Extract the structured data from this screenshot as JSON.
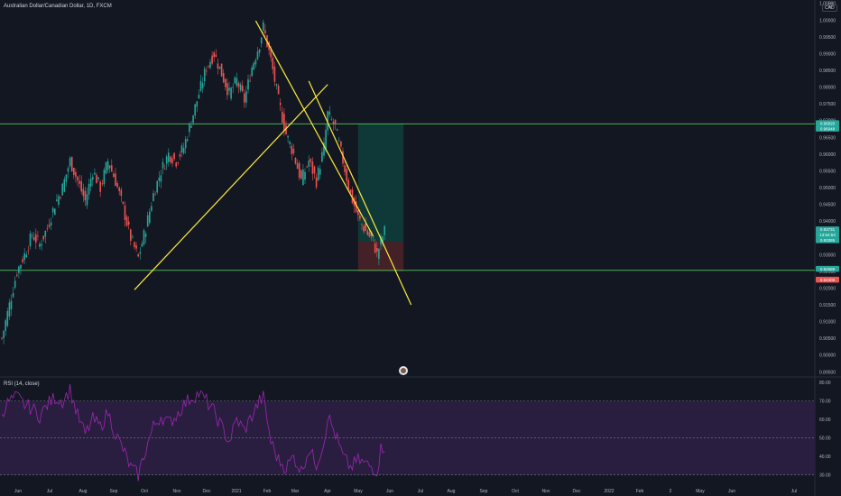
{
  "title": "Australian Dollar/Canadian Dollar, 1D, FXCM",
  "currency_badge": "CAD",
  "settings_icon": "gear-icon",
  "rsi_label": "RSI (14, close)",
  "price_tags": [
    {
      "text": "0.96820",
      "bg": "#26a69a"
    },
    {
      "text": "0.96948",
      "bg": "#26a69a"
    },
    {
      "text": "0.93731",
      "bg": "#26a69a"
    },
    {
      "text": "13:54:53",
      "bg": "#26a69a"
    },
    {
      "text": "0.93385",
      "bg": "#26a69a"
    },
    {
      "text": "0.92589",
      "bg": "#26a69a"
    },
    {
      "text": "0.92409",
      "bg": "#ef5350"
    }
  ],
  "chart_data": [
    {
      "type": "candlestick",
      "symbol": "AUD/CAD",
      "timeframe": "1D",
      "x_ticks": [
        "Jun",
        "Jul",
        "Aug",
        "Sep",
        "Oct",
        "Nov",
        "Dec",
        "2021",
        "Feb",
        "Mar",
        "Apr",
        "May",
        "Jun",
        "Jul",
        "Aug",
        "Sep",
        "Oct",
        "Nov",
        "Dec",
        "2022",
        "Feb",
        "2",
        "May",
        "Jun",
        "Jul"
      ],
      "y_ticks": [
        "1.00500",
        "1.00000",
        "0.99500",
        "0.99000",
        "0.98500",
        "0.98000",
        "0.97500",
        "0.97000",
        "0.96500",
        "0.96000",
        "0.95500",
        "0.95000",
        "0.94500",
        "0.94000",
        "0.93500",
        "0.93000",
        "0.92500",
        "0.92000",
        "0.91500",
        "0.91000",
        "0.90500",
        "0.90000",
        "0.89500"
      ],
      "ylim": [
        0.894,
        1.006
      ],
      "close_path": [
        [
          0,
          0.905
        ],
        [
          4,
          0.915
        ],
        [
          8,
          0.925
        ],
        [
          12,
          0.93
        ],
        [
          16,
          0.936
        ],
        [
          20,
          0.933
        ],
        [
          24,
          0.938
        ],
        [
          28,
          0.945
        ],
        [
          32,
          0.95
        ],
        [
          36,
          0.958
        ],
        [
          40,
          0.952
        ],
        [
          44,
          0.946
        ],
        [
          48,
          0.955
        ],
        [
          52,
          0.95
        ],
        [
          56,
          0.958
        ],
        [
          60,
          0.952
        ],
        [
          64,
          0.944
        ],
        [
          68,
          0.935
        ],
        [
          72,
          0.929
        ],
        [
          76,
          0.938
        ],
        [
          80,
          0.948
        ],
        [
          84,
          0.955
        ],
        [
          88,
          0.96
        ],
        [
          92,
          0.958
        ],
        [
          96,
          0.962
        ],
        [
          100,
          0.97
        ],
        [
          104,
          0.978
        ],
        [
          108,
          0.986
        ],
        [
          112,
          0.99
        ],
        [
          116,
          0.984
        ],
        [
          120,
          0.978
        ],
        [
          124,
          0.982
        ],
        [
          128,
          0.976
        ],
        [
          132,
          0.986
        ],
        [
          136,
          0.993
        ],
        [
          138,
          0.998
        ],
        [
          142,
          0.988
        ],
        [
          146,
          0.976
        ],
        [
          150,
          0.966
        ],
        [
          154,
          0.96
        ],
        [
          158,
          0.952
        ],
        [
          162,
          0.958
        ],
        [
          166,
          0.952
        ],
        [
          170,
          0.962
        ],
        [
          172,
          0.972
        ],
        [
          176,
          0.968
        ],
        [
          180,
          0.958
        ],
        [
          184,
          0.948
        ],
        [
          188,
          0.941
        ],
        [
          192,
          0.937
        ],
        [
          196,
          0.934
        ],
        [
          198,
          0.93
        ],
        [
          200,
          0.934
        ],
        [
          202,
          0.937
        ]
      ],
      "resistance_level": 0.969,
      "support_level": 0.9253,
      "trendlines": [
        {
          "from": [
            70,
            0.9195
          ],
          "to": [
            172,
            0.9808
          ]
        },
        {
          "from": [
            134,
            0.9998
          ],
          "to": [
            196,
            0.9355
          ]
        },
        {
          "from": [
            162,
            0.9818
          ],
          "to": [
            216,
            0.915
          ]
        }
      ],
      "position": {
        "type": "long",
        "entry": 0.9338,
        "take_profit": 0.969,
        "stop_loss": 0.925,
        "x_start": 188,
        "x_end": 212
      }
    },
    {
      "type": "line",
      "name": "RSI (14, close)",
      "y_ticks": [
        "80.00",
        "70.00",
        "60.00",
        "50.00",
        "40.00",
        "30.00"
      ],
      "ylim": [
        25,
        82
      ],
      "bands": [
        30,
        50,
        70
      ],
      "values_path": [
        [
          0,
          64
        ],
        [
          4,
          70
        ],
        [
          8,
          72
        ],
        [
          12,
          68
        ],
        [
          16,
          66
        ],
        [
          20,
          62
        ],
        [
          24,
          68
        ],
        [
          28,
          72
        ],
        [
          32,
          70
        ],
        [
          36,
          76
        ],
        [
          40,
          62
        ],
        [
          44,
          52
        ],
        [
          48,
          60
        ],
        [
          52,
          56
        ],
        [
          56,
          64
        ],
        [
          60,
          52
        ],
        [
          64,
          44
        ],
        [
          68,
          34
        ],
        [
          72,
          30
        ],
        [
          76,
          44
        ],
        [
          80,
          56
        ],
        [
          84,
          62
        ],
        [
          88,
          58
        ],
        [
          92,
          62
        ],
        [
          96,
          68
        ],
        [
          100,
          72
        ],
        [
          104,
          74
        ],
        [
          108,
          70
        ],
        [
          112,
          64
        ],
        [
          116,
          56
        ],
        [
          120,
          48
        ],
        [
          124,
          60
        ],
        [
          128,
          54
        ],
        [
          132,
          62
        ],
        [
          136,
          70
        ],
        [
          138,
          72
        ],
        [
          142,
          48
        ],
        [
          146,
          38
        ],
        [
          150,
          34
        ],
        [
          154,
          40
        ],
        [
          158,
          32
        ],
        [
          162,
          44
        ],
        [
          166,
          36
        ],
        [
          170,
          48
        ],
        [
          172,
          62
        ],
        [
          176,
          52
        ],
        [
          180,
          40
        ],
        [
          184,
          34
        ],
        [
          188,
          38
        ],
        [
          192,
          36
        ],
        [
          196,
          34
        ],
        [
          198,
          32
        ],
        [
          200,
          44
        ],
        [
          202,
          46
        ]
      ]
    }
  ]
}
